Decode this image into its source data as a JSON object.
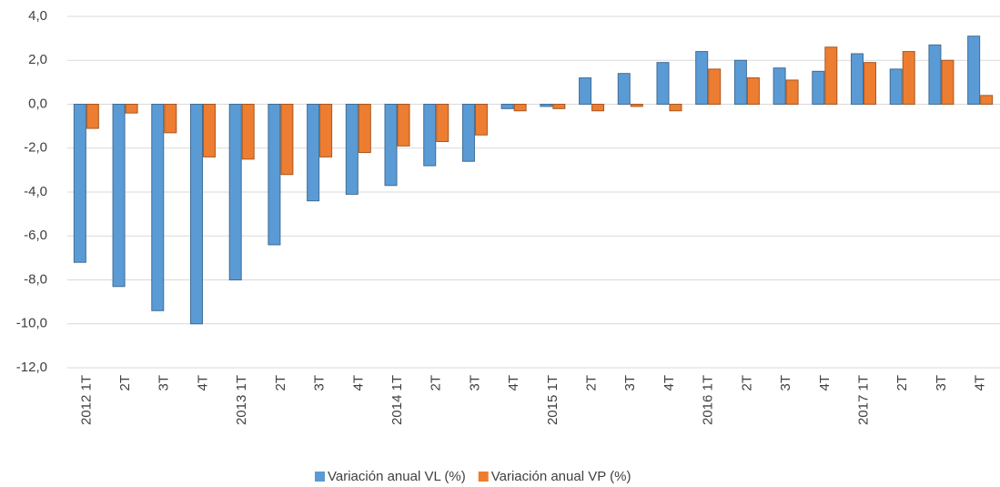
{
  "chart_data": {
    "type": "bar",
    "categories": [
      "2012 1T",
      "2T",
      "3T",
      "4T",
      "2013 1T",
      "2T",
      "3T",
      "4T",
      "2014 1T",
      "2T",
      "3T",
      "4T",
      "2015 1T",
      "2T",
      "3T",
      "4T",
      "2016 1T",
      "2T",
      "3T",
      "4T",
      "2017 1T",
      "2T",
      "3T",
      "4T"
    ],
    "series": [
      {
        "name": "Variación anual VL (%)",
        "color": "#5b9bd5",
        "values": [
          -7.2,
          -8.3,
          -9.4,
          -10.0,
          -8.0,
          -6.4,
          -4.4,
          -4.1,
          -3.7,
          -2.8,
          -2.6,
          -0.2,
          -0.1,
          1.2,
          1.4,
          1.9,
          2.4,
          2.0,
          1.65,
          1.5,
          2.3,
          1.6,
          2.7,
          3.1
        ]
      },
      {
        "name": "Variación anual VP (%)",
        "color": "#ed7d31",
        "values": [
          -1.1,
          -0.4,
          -1.3,
          -2.4,
          -2.5,
          -3.2,
          -2.4,
          -2.2,
          -1.9,
          -1.7,
          -1.4,
          -0.3,
          -0.2,
          -0.3,
          -0.1,
          -0.3,
          1.6,
          1.2,
          1.1,
          2.6,
          1.9,
          2.4,
          2.0,
          0.4
        ]
      }
    ],
    "ylim": [
      -12,
      4
    ],
    "yticks": [
      {
        "value": -12,
        "label": "-12,0"
      },
      {
        "value": -10,
        "label": "-10,0"
      },
      {
        "value": -8,
        "label": "-8,0"
      },
      {
        "value": -6,
        "label": "-6,0"
      },
      {
        "value": -4,
        "label": "-4,0"
      },
      {
        "value": -2,
        "label": "-2,0"
      },
      {
        "value": 0,
        "label": "0,0"
      },
      {
        "value": 2,
        "label": "2,0"
      },
      {
        "value": 4,
        "label": "4,0"
      }
    ],
    "grid": true,
    "legend": "bottom"
  }
}
